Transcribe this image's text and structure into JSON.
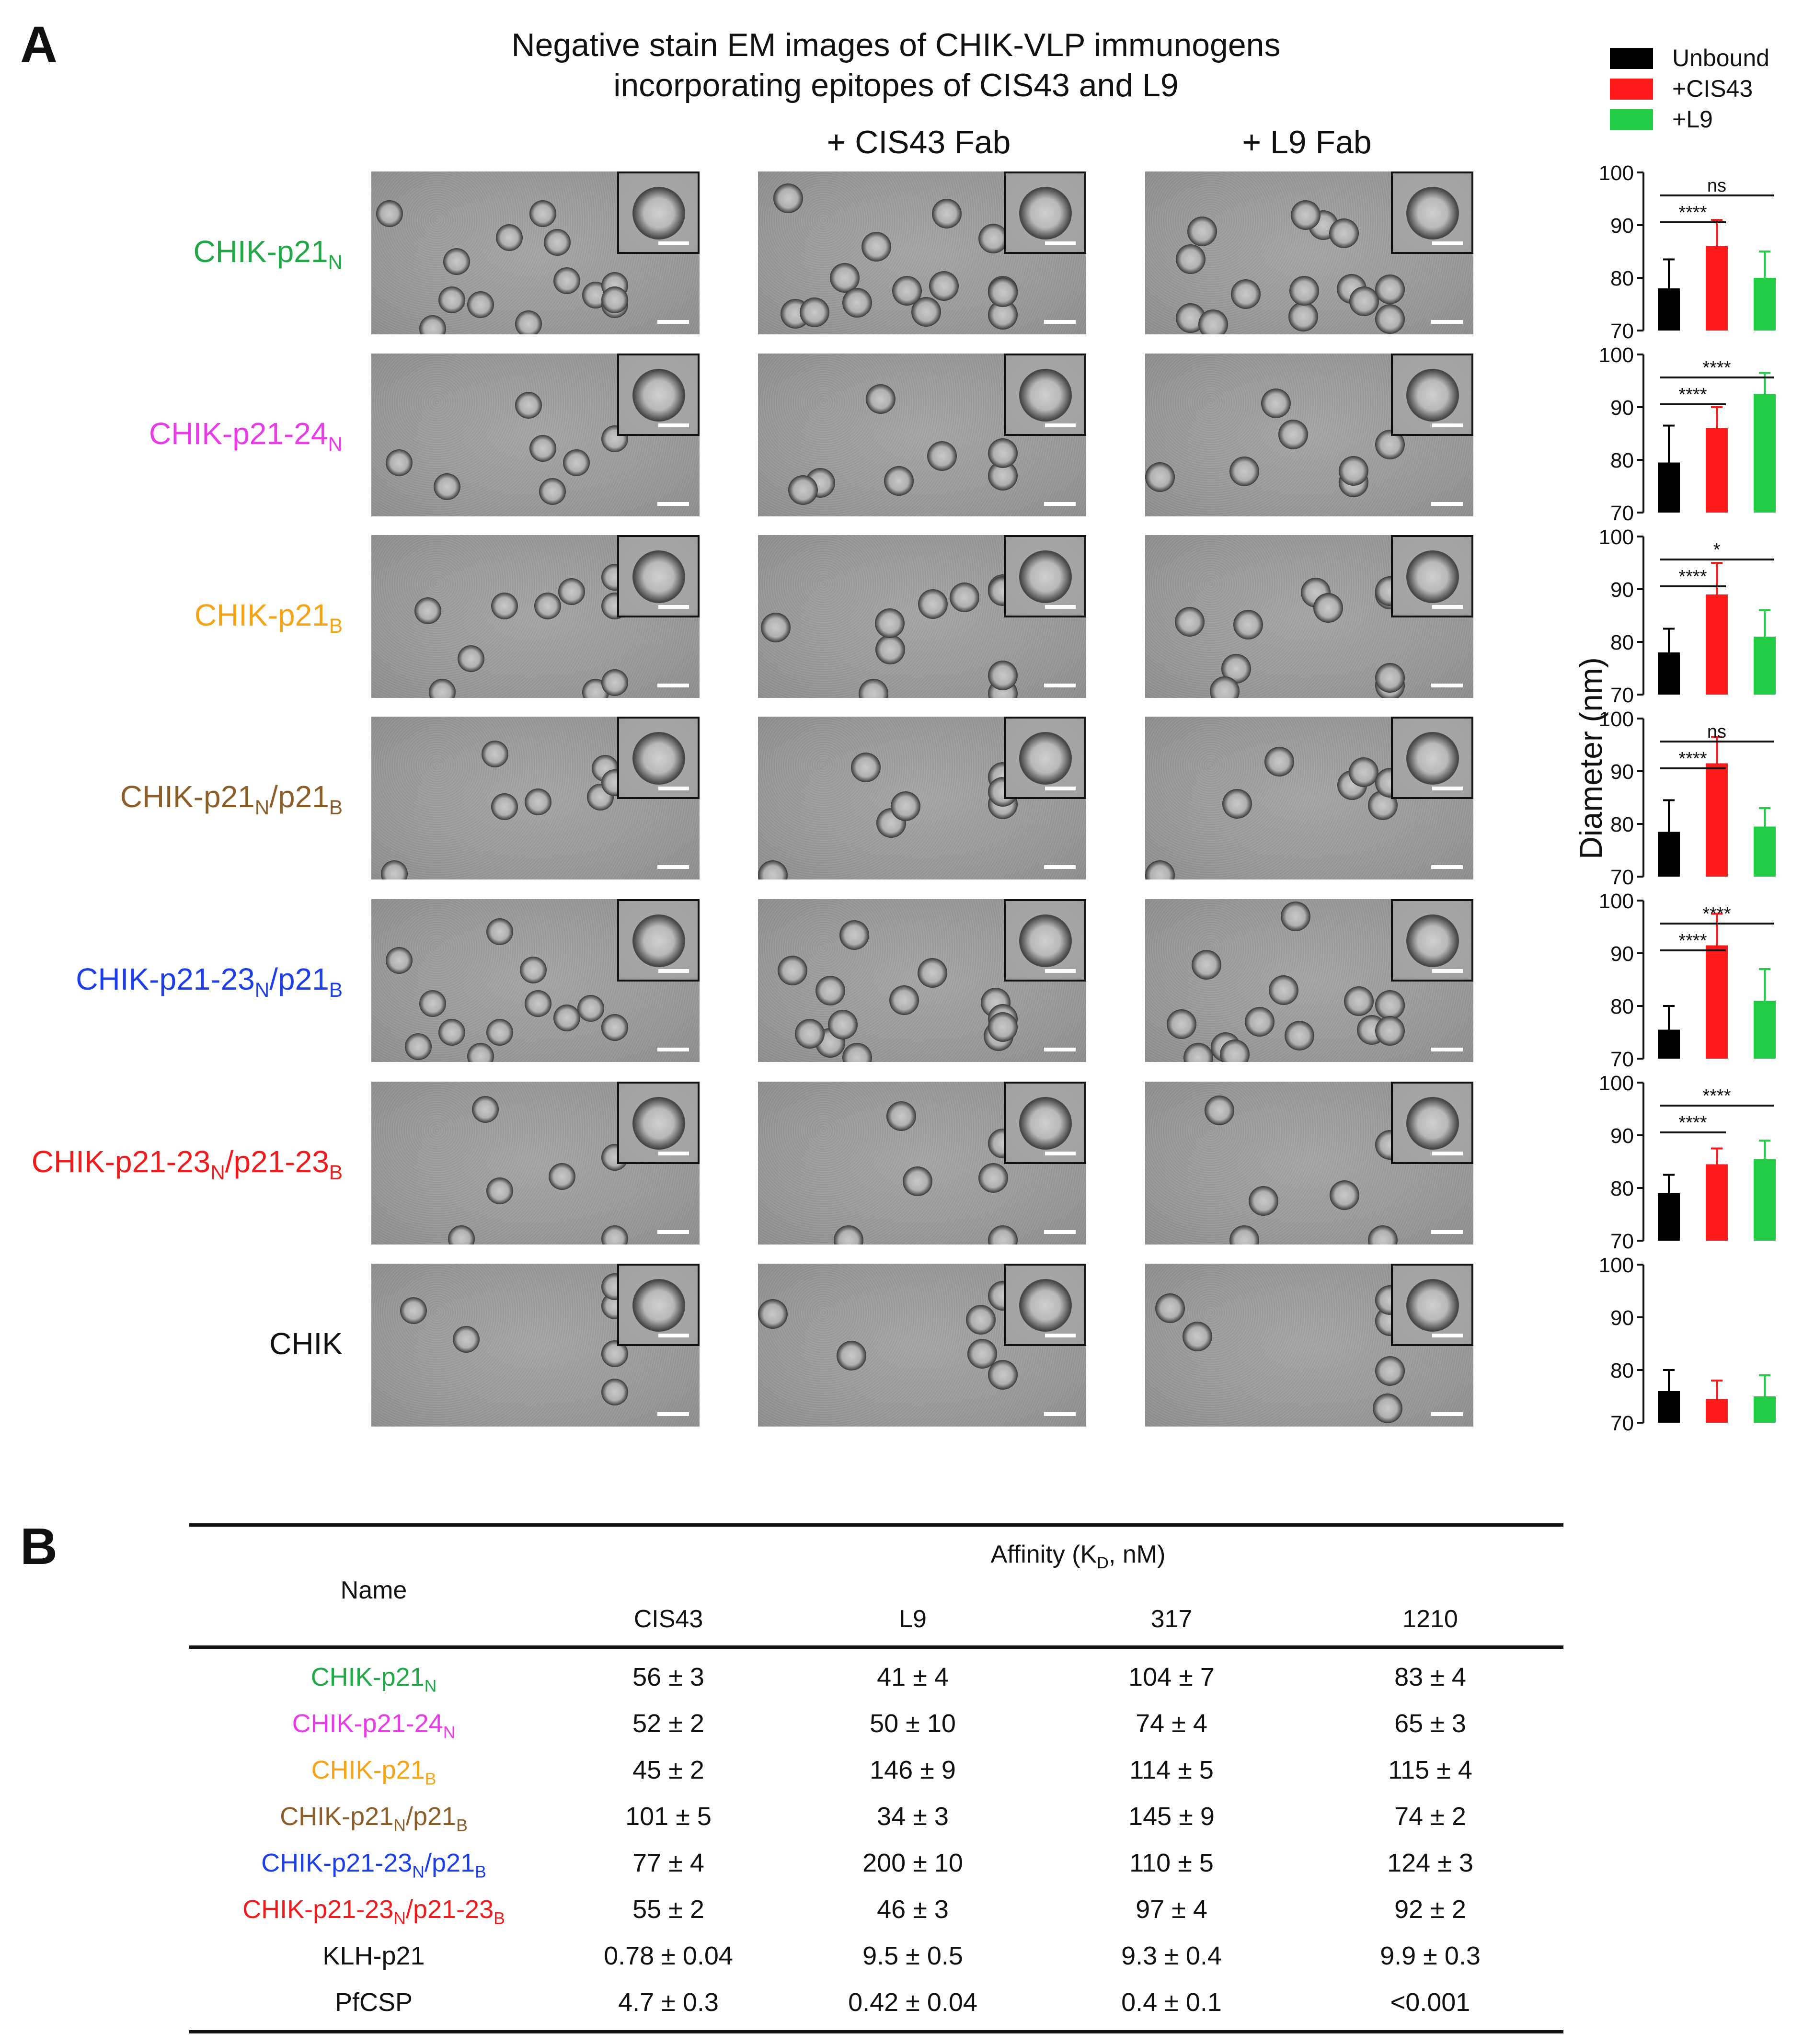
{
  "panel_a": {
    "letter": "A",
    "title_line1": "Negative stain EM images of CHIK-VLP immunogens",
    "title_line2": "incorporating epitopes of CIS43 and L9",
    "col_headers": [
      "",
      "+ CIS43 Fab",
      "+ L9 Fab"
    ]
  },
  "rows": [
    {
      "name": "CHIK-p21",
      "sub": "N",
      "rest": "",
      "rest_sub": "",
      "color": "#22a846"
    },
    {
      "name": "CHIK-p21-24",
      "sub": "N",
      "rest": "",
      "rest_sub": "",
      "color": "#e83ce8"
    },
    {
      "name": "CHIK-p21",
      "sub": "B",
      "rest": "",
      "rest_sub": "",
      "color": "#f5a418"
    },
    {
      "name": "CHIK-p21",
      "sub": "N",
      "rest": "/p21",
      "rest_sub": "B",
      "color": "#8b5e2a"
    },
    {
      "name": "CHIK-p21-23",
      "sub": "N",
      "rest": "/p21",
      "rest_sub": "B",
      "color": "#1f3fe6"
    },
    {
      "name": "CHIK-p21-23",
      "sub": "N",
      "rest": "/p21-23",
      "rest_sub": "B",
      "color": "#ee1c1c"
    },
    {
      "name": "CHIK",
      "sub": "",
      "rest": "",
      "rest_sub": "",
      "color": "#111111"
    }
  ],
  "legend": [
    {
      "label": "Unbound",
      "color": "#000000"
    },
    {
      "label": "+CIS43",
      "color": "#ff1a1a"
    },
    {
      "label": "+L9",
      "color": "#22cc44"
    }
  ],
  "chart_data": {
    "type": "bar",
    "ylabel": "Diameter (nm)",
    "ylim": [
      70,
      100
    ],
    "yticks": [
      70,
      80,
      90,
      100
    ],
    "series_names": [
      "Unbound",
      "+CIS43",
      "+L9"
    ],
    "series_colors": [
      "#000000",
      "#ff1a1a",
      "#22cc44"
    ],
    "panels": [
      {
        "values": [
          78,
          86,
          80
        ],
        "errors": [
          5.5,
          5,
          5
        ],
        "sig": [
          {
            "from": 0,
            "to": 1,
            "label": "****"
          },
          {
            "from": 0,
            "to": 2,
            "label": "ns"
          }
        ]
      },
      {
        "values": [
          79.5,
          86,
          92.5
        ],
        "errors": [
          7,
          4,
          4
        ],
        "sig": [
          {
            "from": 0,
            "to": 1,
            "label": "****"
          },
          {
            "from": 0,
            "to": 2,
            "label": "****"
          }
        ]
      },
      {
        "values": [
          78,
          89,
          81
        ],
        "errors": [
          4.5,
          6,
          5
        ],
        "sig": [
          {
            "from": 0,
            "to": 1,
            "label": "****"
          },
          {
            "from": 0,
            "to": 2,
            "label": "*"
          }
        ]
      },
      {
        "values": [
          78.5,
          91.5,
          79.5
        ],
        "errors": [
          6,
          5,
          3.5
        ],
        "sig": [
          {
            "from": 0,
            "to": 1,
            "label": "****"
          },
          {
            "from": 0,
            "to": 2,
            "label": "ns"
          }
        ]
      },
      {
        "values": [
          75.5,
          91.5,
          81
        ],
        "errors": [
          4.5,
          6,
          6
        ],
        "sig": [
          {
            "from": 0,
            "to": 1,
            "label": "****"
          },
          {
            "from": 0,
            "to": 2,
            "label": "****"
          }
        ]
      },
      {
        "values": [
          79,
          84.5,
          85.5
        ],
        "errors": [
          3.5,
          3,
          3.5
        ],
        "sig": [
          {
            "from": 0,
            "to": 1,
            "label": "****"
          },
          {
            "from": 0,
            "to": 2,
            "label": "****"
          }
        ]
      },
      {
        "values": [
          76,
          74.5,
          75
        ],
        "errors": [
          4,
          3.5,
          4
        ],
        "sig": []
      }
    ]
  },
  "panel_b": {
    "letter": "B",
    "name_header": "Name",
    "affinity_header_pre": "Affinity (K",
    "affinity_header_sub": "D",
    "affinity_header_post": ", nM)",
    "columns": [
      "CIS43",
      "L9",
      "317",
      "1210"
    ],
    "rows": [
      {
        "name": "CHIK-p21",
        "sub": "N",
        "rest": "",
        "rest_sub": "",
        "color": "#22a846",
        "values": [
          "56 ± 3",
          "41 ± 4",
          "104 ± 7",
          "83 ± 4"
        ]
      },
      {
        "name": "CHIK-p21-24",
        "sub": "N",
        "rest": "",
        "rest_sub": "",
        "color": "#e83ce8",
        "values": [
          "52 ± 2",
          "50 ± 10",
          "74 ± 4",
          "65 ± 3"
        ]
      },
      {
        "name": "CHIK-p21",
        "sub": "B",
        "rest": "",
        "rest_sub": "",
        "color": "#f5a418",
        "values": [
          "45 ± 2",
          "146 ± 9",
          "114 ± 5",
          "115 ± 4"
        ]
      },
      {
        "name": "CHIK-p21",
        "sub": "N",
        "rest": "/p21",
        "rest_sub": "B",
        "color": "#8b5e2a",
        "values": [
          "101 ± 5",
          "34 ± 3",
          "145 ± 9",
          "74 ± 2"
        ]
      },
      {
        "name": "CHIK-p21-23",
        "sub": "N",
        "rest": "/p21",
        "rest_sub": "B",
        "color": "#1f3fe6",
        "values": [
          "77 ± 4",
          "200 ± 10",
          "110 ± 5",
          "124 ± 3"
        ]
      },
      {
        "name": "CHIK-p21-23",
        "sub": "N",
        "rest": "/p21-23",
        "rest_sub": "B",
        "color": "#ee1c1c",
        "values": [
          "55 ± 2",
          "46 ± 3",
          "97 ± 4",
          "92 ± 2"
        ]
      },
      {
        "name": "KLH-p21",
        "sub": "",
        "rest": "",
        "rest_sub": "",
        "color": "#111111",
        "values": [
          "0.78 ± 0.04",
          "9.5 ± 0.5",
          "9.3 ± 0.4",
          "9.9 ± 0.3"
        ]
      },
      {
        "name": "PfCSP",
        "sub": "",
        "rest": "",
        "rest_sub": "",
        "color": "#111111",
        "values": [
          "4.7 ± 0.3",
          "0.42 ± 0.04",
          "0.4 ± 0.1",
          "<0.001"
        ]
      }
    ]
  }
}
